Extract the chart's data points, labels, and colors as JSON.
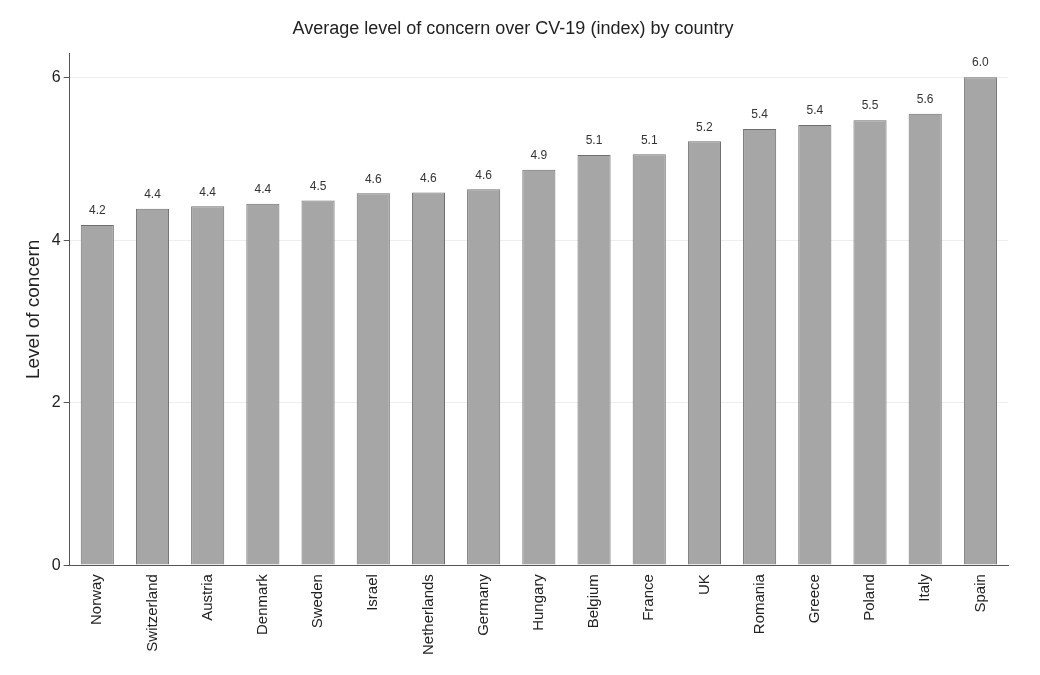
{
  "chart_data": {
    "type": "bar",
    "title": "Average level of concern over CV-19 (index) by country",
    "ylabel": "Level of concern",
    "categories": [
      "Norway",
      "Switzerland",
      "Austria",
      "Denmark",
      "Sweden",
      "Israel",
      "Netherlands",
      "Germany",
      "Hungary",
      "Belgium",
      "France",
      "UK",
      "Romania",
      "Greece",
      "Poland",
      "Italy",
      "Spain"
    ],
    "values": [
      4.19,
      4.39,
      4.42,
      4.45,
      4.49,
      4.58,
      4.59,
      4.63,
      4.87,
      5.05,
      5.06,
      5.22,
      5.37,
      5.42,
      5.48,
      5.56,
      6.01
    ],
    "value_labels": [
      "4.2",
      "4.4",
      "4.4",
      "4.4",
      "4.5",
      "4.6",
      "4.6",
      "4.6",
      "4.9",
      "5.1",
      "5.1",
      "5.2",
      "5.4",
      "5.4",
      "5.5",
      "5.6",
      "6.0"
    ],
    "color": "#a6a6a6",
    "ylim": [
      0,
      6.3
    ],
    "yticks": [
      0,
      2,
      4,
      6
    ],
    "grid": "y",
    "legend": false
  }
}
